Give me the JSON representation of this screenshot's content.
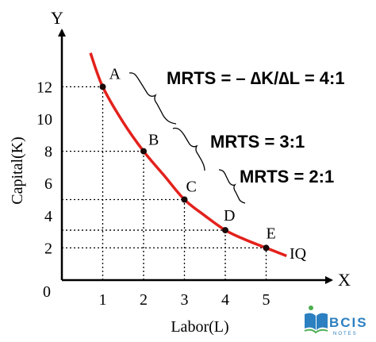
{
  "chart_data": {
    "type": "line",
    "xlabel": "Labor(L)",
    "ylabel": "Capital(K)",
    "x_axis_letter": "X",
    "y_axis_letter": "Y",
    "origin_label": "0",
    "x_ticks": [
      "1",
      "2",
      "3",
      "4",
      "5"
    ],
    "y_ticks": [
      "2",
      "4",
      "6",
      "8",
      "10",
      "12"
    ],
    "xlim": [
      0,
      5.6
    ],
    "ylim": [
      0,
      14.5
    ],
    "grid": false,
    "series": [
      {
        "name": "IQ",
        "color": "#e3211c",
        "curve_x": [
          0.7,
          1,
          1.5,
          2,
          2.5,
          3,
          3.5,
          4,
          4.5,
          5,
          5.5
        ],
        "curve_y": [
          14.1,
          12,
          9.8,
          8,
          6.5,
          5,
          4,
          3.1,
          2.5,
          2,
          1.5
        ]
      }
    ],
    "points": [
      {
        "label": "A",
        "x": 1,
        "y": 12
      },
      {
        "label": "B",
        "x": 2,
        "y": 8
      },
      {
        "label": "C",
        "x": 3,
        "y": 5
      },
      {
        "label": "D",
        "x": 4,
        "y": 3.1
      },
      {
        "label": "E",
        "x": 5,
        "y": 2
      }
    ],
    "annotations": [
      {
        "text": "MRTS = – ∆K/∆L = 4:1",
        "from": "A",
        "to": "B"
      },
      {
        "text": "MRTS = 3:1",
        "from": "B",
        "to": "C"
      },
      {
        "text": "MRTS = 2:1",
        "from": "C",
        "to": "D"
      }
    ]
  },
  "watermark": {
    "text": "BCIS",
    "subtext": "NOTES",
    "color": "#2c7fc0"
  }
}
